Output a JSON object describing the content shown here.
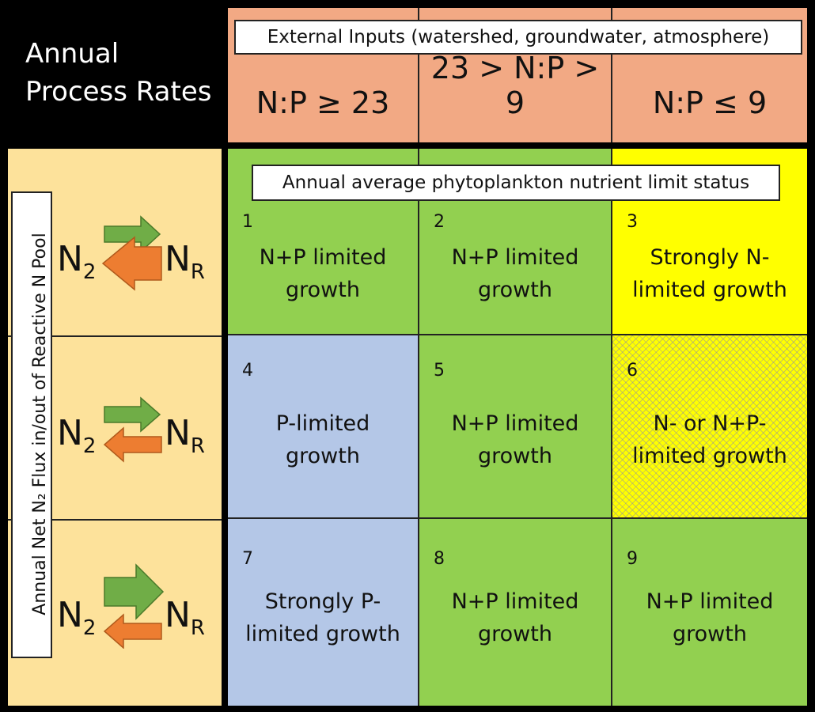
{
  "title": {
    "line1": "Annual",
    "line2": "Process Rates"
  },
  "inputs_header": "External Inputs (watershed, groundwater, atmosphere)",
  "ratios": [
    "N:P ≥ 23",
    "23 > N:P > 9",
    "N:P ≤ 9"
  ],
  "side_label": "Annual Net N₂ Flux in/out of Reactive N Pool",
  "flux_rows": [
    {
      "left": "N",
      "left_sub": "2",
      "right": "N",
      "right_sub": "R",
      "forward": "small",
      "reverse": "large"
    },
    {
      "left": "N",
      "left_sub": "2",
      "right": "N",
      "right_sub": "R",
      "forward": "small",
      "reverse": "small"
    },
    {
      "left": "N",
      "left_sub": "2",
      "right": "N",
      "right_sub": "R",
      "forward": "large",
      "reverse": "small"
    }
  ],
  "status_header": "Annual average phytoplankton nutrient limit status",
  "cells": [
    {
      "num": "1",
      "line1": "N+P limited",
      "line2": "growth",
      "fill": "green"
    },
    {
      "num": "2",
      "line1": "N+P limited",
      "line2": "growth",
      "fill": "green"
    },
    {
      "num": "3",
      "line1": "Strongly N-",
      "line2": "limited growth",
      "fill": "yellow"
    },
    {
      "num": "4",
      "line1": "P-limited",
      "line2": "growth",
      "fill": "blue"
    },
    {
      "num": "5",
      "line1": "N+P limited",
      "line2": "growth",
      "fill": "green"
    },
    {
      "num": "6",
      "line1": "N- or N+P-",
      "line2": "limited growth",
      "fill": "yellow-hatched"
    },
    {
      "num": "7",
      "line1": "Strongly P-",
      "line2": "limited growth",
      "fill": "blue"
    },
    {
      "num": "8",
      "line1": "N+P limited",
      "line2": "growth",
      "fill": "green"
    },
    {
      "num": "9",
      "line1": "N+P limited",
      "line2": "growth",
      "fill": "green"
    }
  ],
  "colors": {
    "header_fill": "#f2a984",
    "side_fill": "#fde29b",
    "green": "#92d050",
    "blue": "#b4c7e7",
    "yellow": "#ffff00",
    "arrow_green": "#70ad47",
    "arrow_orange": "#ed7d31"
  }
}
